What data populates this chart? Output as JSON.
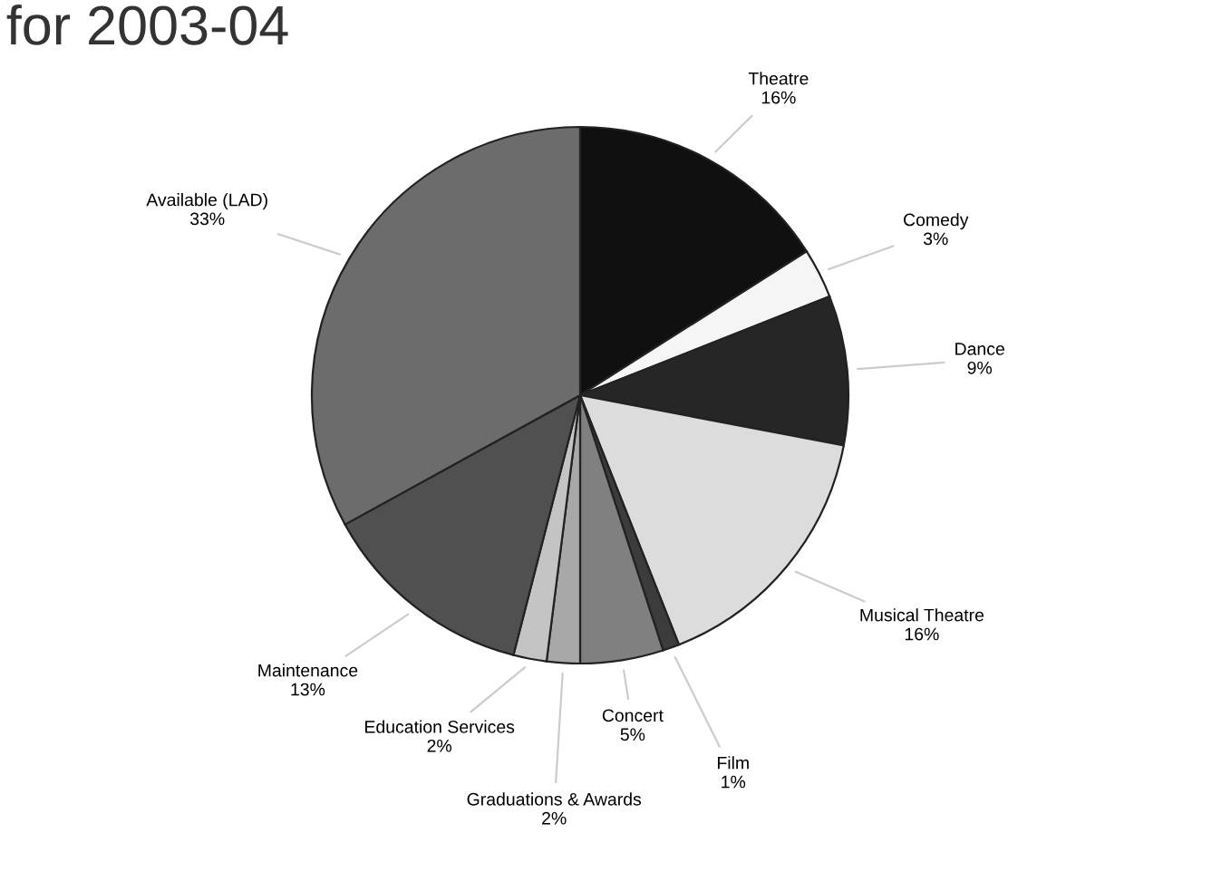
{
  "chart_data": {
    "type": "pie",
    "title": "for 2003-04",
    "categories": [
      "Theatre",
      "Comedy",
      "Dance",
      "Musical Theatre",
      "Film",
      "Concert",
      "Graduations & Awards",
      "Education Services",
      "Maintenance",
      "Available (LAD)"
    ],
    "values": [
      16,
      3,
      9,
      16,
      1,
      5,
      2,
      2,
      13,
      33
    ],
    "value_labels": [
      "16%",
      "3%",
      "9%",
      "16%",
      "1%",
      "5%",
      "2%",
      "2%",
      "13%",
      "33%"
    ],
    "colors": [
      "#101010",
      "#f5f5f5",
      "#262626",
      "#dcdcdc",
      "#3c3c3c",
      "#808080",
      "#a8a8a8",
      "#c4c4c4",
      "#505050",
      "#6c6c6c"
    ]
  }
}
